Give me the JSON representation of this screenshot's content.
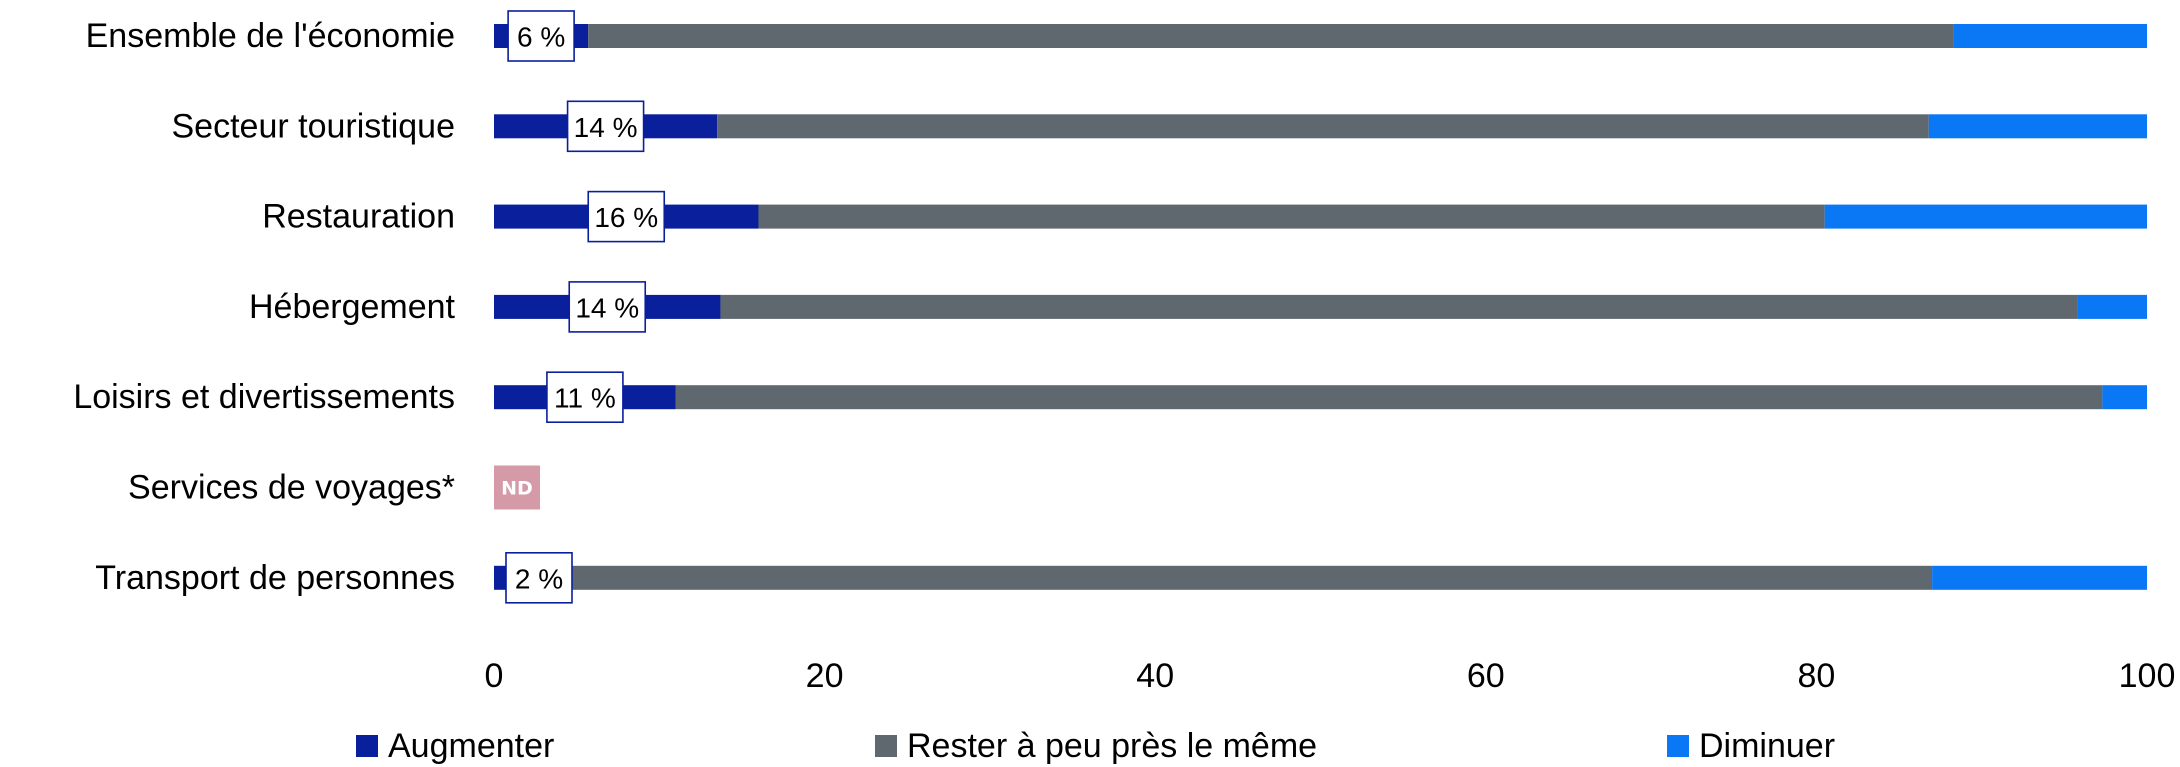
{
  "chart_data": {
    "type": "bar",
    "orientation": "horizontal",
    "stacked": true,
    "categories": [
      "Ensemble de l'économie",
      "Secteur touristique",
      "Restauration",
      "Hébergement",
      "Loisirs et divertissements",
      "Services de voyages*",
      "Transport de personnes"
    ],
    "series": [
      {
        "name": "Augmenter",
        "color": "#0a1f9c",
        "values": [
          5.7,
          13.5,
          16.0,
          13.7,
          11.0,
          null,
          1.7
        ]
      },
      {
        "name": "Rester à peu près le même",
        "color": "#5f686e",
        "values": [
          82.6,
          73.3,
          64.5,
          82.1,
          86.3,
          null,
          85.3
        ]
      },
      {
        "name": "Diminuer",
        "color": "#0a78f4",
        "values": [
          11.7,
          13.2,
          19.5,
          4.2,
          2.7,
          null,
          13.0
        ]
      }
    ],
    "data_labels": [
      "6 %",
      "14 %",
      "16 %",
      "14 %",
      "11 %",
      null,
      "2 %"
    ],
    "missing_label": "ND",
    "missing_color": "#d49aa8",
    "xlim": [
      0,
      100
    ],
    "xticks": [
      0,
      20,
      40,
      60,
      80,
      100
    ],
    "grid": false,
    "legend_position": "bottom"
  }
}
